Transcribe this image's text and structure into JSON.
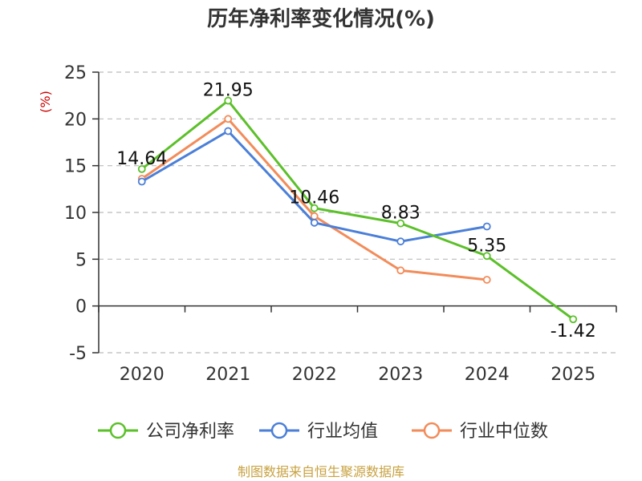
{
  "chart_data": {
    "type": "line",
    "title": "历年净利率变化情况(%)",
    "unit_label": "(%)",
    "categories": [
      "2020",
      "2021",
      "2022",
      "2023",
      "2024",
      "2025"
    ],
    "ylim": [
      -5,
      25
    ],
    "yticks": [
      -5,
      0,
      5,
      10,
      15,
      20,
      25
    ],
    "grid": true,
    "legend_position": "bottom",
    "series": [
      {
        "name": "公司净利率",
        "color": "#5cc02a",
        "values": [
          14.64,
          21.95,
          10.46,
          8.83,
          5.35,
          -1.42
        ],
        "labels": [
          "14.64",
          "21.95",
          "10.46",
          "8.83",
          "5.35",
          "-1.42"
        ]
      },
      {
        "name": "行业均值",
        "color": "#4b7fd8",
        "values": [
          13.3,
          18.7,
          8.9,
          6.9,
          8.5,
          null
        ]
      },
      {
        "name": "行业中位数",
        "color": "#f28c5a",
        "values": [
          13.6,
          20.0,
          9.6,
          3.8,
          2.8,
          null
        ]
      }
    ],
    "source": "制图数据来自恒生聚源数据库"
  }
}
